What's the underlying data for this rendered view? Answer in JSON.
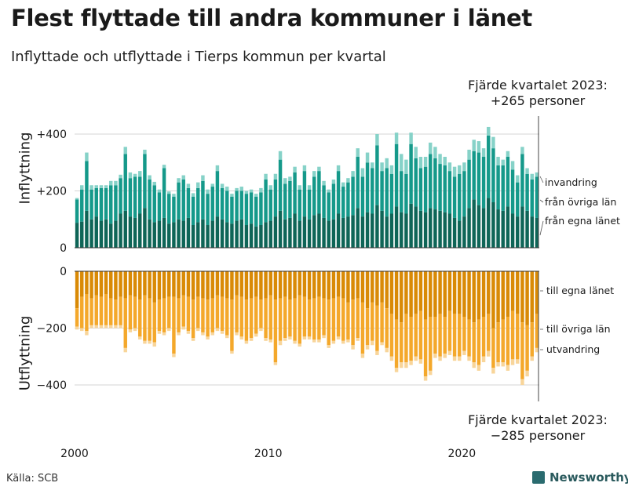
{
  "title": "Flest flyttade till andra kommuner i länet",
  "subtitle": "Inflyttade och utflyttade i Tierps kommun per kvartal",
  "note_top": {
    "line1": "Fjärde kvartalet 2023:",
    "line2": "+265 personer"
  },
  "note_bottom": {
    "line1": "Fjärde kvartalet 2023:",
    "line2": "−285 personer"
  },
  "source": "Källa: SCB",
  "brand": "Newsworthy",
  "colors": {
    "in_egna": "#0e6557",
    "in_ovriga": "#15998a",
    "in_invandring": "#86d2c8",
    "out_egna": "#d98a06",
    "out_ovriga": "#f4a82b",
    "out_utvandring": "#f8d59a"
  },
  "chart_data": [
    {
      "type": "bar",
      "stacked": true,
      "title": "Inflyttning",
      "ylabel": "Inflyttning",
      "ylim": [
        0,
        480
      ],
      "yticks": [
        0,
        200,
        400
      ],
      "ytick_labels": [
        "0",
        "+200",
        "+400"
      ],
      "x_tick_labels": [
        "2000",
        "2010",
        "2020"
      ],
      "x_tick_positions": [
        2000,
        2010,
        2020
      ],
      "x": [
        2000.0,
        2000.25,
        2000.5,
        2000.75,
        2001.0,
        2001.25,
        2001.5,
        2001.75,
        2002.0,
        2002.25,
        2002.5,
        2002.75,
        2003.0,
        2003.25,
        2003.5,
        2003.75,
        2004.0,
        2004.25,
        2004.5,
        2004.75,
        2005.0,
        2005.25,
        2005.5,
        2005.75,
        2006.0,
        2006.25,
        2006.5,
        2006.75,
        2007.0,
        2007.25,
        2007.5,
        2007.75,
        2008.0,
        2008.25,
        2008.5,
        2008.75,
        2009.0,
        2009.25,
        2009.5,
        2009.75,
        2010.0,
        2010.25,
        2010.5,
        2010.75,
        2011.0,
        2011.25,
        2011.5,
        2011.75,
        2012.0,
        2012.25,
        2012.5,
        2012.75,
        2013.0,
        2013.25,
        2013.5,
        2013.75,
        2014.0,
        2014.25,
        2014.5,
        2014.75,
        2015.0,
        2015.25,
        2015.5,
        2015.75,
        2016.0,
        2016.25,
        2016.5,
        2016.75,
        2017.0,
        2017.25,
        2017.5,
        2017.75,
        2018.0,
        2018.25,
        2018.5,
        2018.75,
        2019.0,
        2019.25,
        2019.5,
        2019.75,
        2020.0,
        2020.25,
        2020.5,
        2020.75,
        2021.0,
        2021.25,
        2021.5,
        2021.75,
        2022.0,
        2022.25,
        2022.5,
        2022.75,
        2023.0,
        2023.25,
        2023.5,
        2023.75
      ],
      "series": [
        {
          "name": "från egna länet",
          "values": [
            88,
            92,
            130,
            100,
            110,
            95,
            100,
            85,
            95,
            120,
            130,
            110,
            105,
            120,
            140,
            100,
            90,
            95,
            105,
            85,
            90,
            100,
            95,
            105,
            80,
            90,
            100,
            80,
            95,
            110,
            100,
            90,
            85,
            95,
            100,
            80,
            85,
            75,
            80,
            90,
            95,
            110,
            130,
            100,
            105,
            120,
            95,
            110,
            100,
            115,
            120,
            105,
            95,
            100,
            120,
            105,
            110,
            115,
            140,
            110,
            125,
            120,
            150,
            130,
            110,
            120,
            145,
            125,
            120,
            155,
            145,
            130,
            125,
            140,
            135,
            130,
            125,
            120,
            105,
            95,
            110,
            140,
            170,
            150,
            140,
            175,
            160,
            135,
            130,
            145,
            120,
            110,
            145,
            130,
            110,
            105
          ]
        },
        {
          "name": "från övriga län",
          "values": [
            82,
            113,
            175,
            105,
            100,
            115,
            110,
            135,
            125,
            125,
            200,
            135,
            145,
            130,
            190,
            140,
            130,
            100,
            175,
            105,
            90,
            130,
            145,
            105,
            100,
            120,
            135,
            110,
            120,
            160,
            110,
            110,
            95,
            105,
            100,
            110,
            110,
            105,
            115,
            150,
            110,
            130,
            180,
            125,
            130,
            145,
            110,
            160,
            105,
            135,
            150,
            115,
            100,
            125,
            150,
            110,
            120,
            135,
            180,
            140,
            175,
            160,
            210,
            140,
            170,
            140,
            220,
            145,
            140,
            210,
            170,
            150,
            160,
            190,
            180,
            165,
            165,
            150,
            145,
            165,
            160,
            170,
            170,
            185,
            180,
            220,
            190,
            155,
            160,
            175,
            155,
            120,
            185,
            130,
            130,
            145
          ]
        },
        {
          "name": "invandring",
          "values": [
            5,
            15,
            30,
            15,
            10,
            10,
            10,
            15,
            15,
            12,
            25,
            20,
            10,
            20,
            15,
            15,
            12,
            10,
            12,
            8,
            10,
            15,
            15,
            15,
            12,
            20,
            20,
            15,
            10,
            20,
            15,
            15,
            10,
            10,
            15,
            10,
            10,
            10,
            15,
            20,
            15,
            20,
            30,
            20,
            15,
            20,
            15,
            20,
            15,
            20,
            15,
            15,
            10,
            15,
            20,
            15,
            15,
            20,
            30,
            30,
            35,
            20,
            40,
            30,
            35,
            30,
            40,
            60,
            50,
            40,
            40,
            40,
            35,
            40,
            40,
            35,
            30,
            30,
            35,
            30,
            30,
            35,
            40,
            40,
            30,
            30,
            40,
            30,
            20,
            20,
            30,
            25,
            25,
            20,
            20,
            15
          ]
        }
      ]
    },
    {
      "type": "bar",
      "stacked": true,
      "title": "Utflyttning",
      "ylabel": "Utflyttning",
      "ylim": [
        -460,
        0
      ],
      "yticks": [
        0,
        -200,
        -400
      ],
      "ytick_labels": [
        "0",
        "−200",
        "−400"
      ],
      "x_tick_labels": [
        "2000",
        "2010",
        "2020"
      ],
      "x_tick_positions": [
        2000,
        2010,
        2020
      ],
      "x": [
        2000.0,
        2000.25,
        2000.5,
        2000.75,
        2001.0,
        2001.25,
        2001.5,
        2001.75,
        2002.0,
        2002.25,
        2002.5,
        2002.75,
        2003.0,
        2003.25,
        2003.5,
        2003.75,
        2004.0,
        2004.25,
        2004.5,
        2004.75,
        2005.0,
        2005.25,
        2005.5,
        2005.75,
        2006.0,
        2006.25,
        2006.5,
        2006.75,
        2007.0,
        2007.25,
        2007.5,
        2007.75,
        2008.0,
        2008.25,
        2008.5,
        2008.75,
        2009.0,
        2009.25,
        2009.5,
        2009.75,
        2010.0,
        2010.25,
        2010.5,
        2010.75,
        2011.0,
        2011.25,
        2011.5,
        2011.75,
        2012.0,
        2012.25,
        2012.5,
        2012.75,
        2013.0,
        2013.25,
        2013.5,
        2013.75,
        2014.0,
        2014.25,
        2014.5,
        2014.75,
        2015.0,
        2015.25,
        2015.5,
        2015.75,
        2016.0,
        2016.25,
        2016.5,
        2016.75,
        2017.0,
        2017.25,
        2017.5,
        2017.75,
        2018.0,
        2018.25,
        2018.5,
        2018.75,
        2019.0,
        2019.25,
        2019.5,
        2019.75,
        2020.0,
        2020.25,
        2020.5,
        2020.75,
        2021.0,
        2021.25,
        2021.5,
        2021.75,
        2022.0,
        2022.25,
        2022.5,
        2022.75,
        2023.0,
        2023.25,
        2023.5,
        2023.75
      ],
      "series": [
        {
          "name": "till egna länet",
          "values": [
            -130,
            -90,
            -80,
            -95,
            -85,
            -90,
            -80,
            -95,
            -100,
            -90,
            -95,
            -85,
            -90,
            -100,
            -85,
            -95,
            -110,
            -100,
            -95,
            -90,
            -90,
            -95,
            -85,
            -90,
            -100,
            -90,
            -95,
            -100,
            -95,
            -85,
            -90,
            -95,
            -100,
            -85,
            -90,
            -100,
            -95,
            -90,
            -100,
            -95,
            -85,
            -100,
            -95,
            -90,
            -100,
            -95,
            -85,
            -90,
            -100,
            -95,
            -90,
            -95,
            -100,
            -95,
            -90,
            -95,
            -110,
            -100,
            -95,
            -110,
            -130,
            -110,
            -120,
            -110,
            -130,
            -150,
            -170,
            -180,
            -150,
            -160,
            -150,
            -140,
            -170,
            -160,
            -160,
            -150,
            -160,
            -140,
            -150,
            -150,
            -160,
            -170,
            -180,
            -170,
            -160,
            -150,
            -200,
            -180,
            -170,
            -160,
            -140,
            -150,
            -180,
            -190,
            -180,
            -150
          ]
        },
        {
          "name": "till övriga län",
          "values": [
            -65,
            -110,
            -130,
            -95,
            -105,
            -100,
            -110,
            -95,
            -90,
            -100,
            -175,
            -120,
            -110,
            -130,
            -160,
            -150,
            -140,
            -110,
            -120,
            -110,
            -200,
            -120,
            -110,
            -120,
            -135,
            -110,
            -120,
            -130,
            -120,
            -115,
            -120,
            -130,
            -180,
            -130,
            -140,
            -145,
            -140,
            -130,
            -100,
            -140,
            -155,
            -220,
            -150,
            -145,
            -130,
            -150,
            -170,
            -140,
            -130,
            -145,
            -150,
            -130,
            -160,
            -150,
            -140,
            -150,
            -130,
            -160,
            -140,
            -180,
            -130,
            -135,
            -160,
            -140,
            -140,
            -150,
            -170,
            -140,
            -170,
            -155,
            -150,
            -170,
            -200,
            -190,
            -130,
            -150,
            -130,
            -140,
            -150,
            -150,
            -120,
            -130,
            -140,
            -160,
            -140,
            -130,
            -140,
            -140,
            -150,
            -170,
            -170,
            -160,
            -200,
            -160,
            -120,
            -120
          ]
        },
        {
          "name": "utvandring",
          "values": [
            -10,
            -10,
            -15,
            -10,
            -10,
            -10,
            -10,
            -10,
            -10,
            -10,
            -15,
            -10,
            -10,
            -10,
            -10,
            -10,
            -15,
            -10,
            -10,
            -10,
            -12,
            -10,
            -10,
            -10,
            -10,
            -10,
            -10,
            -10,
            -10,
            -10,
            -10,
            -10,
            -10,
            -10,
            -10,
            -10,
            -10,
            -10,
            -10,
            -10,
            -10,
            -10,
            -15,
            -10,
            -10,
            -10,
            -10,
            -10,
            -10,
            -10,
            -10,
            -10,
            -10,
            -10,
            -10,
            -10,
            -10,
            -15,
            -10,
            -15,
            -15,
            -15,
            -15,
            -10,
            -15,
            -15,
            -15,
            -20,
            -20,
            -15,
            -15,
            -15,
            -15,
            -15,
            -15,
            -15,
            -15,
            -15,
            -15,
            -15,
            -15,
            -15,
            -20,
            -20,
            -20,
            -20,
            -20,
            -15,
            -15,
            -20,
            -20,
            -15,
            -20,
            -20,
            -15,
            -15
          ]
        }
      ]
    }
  ],
  "legend_in": [
    "invandring",
    "från övriga län",
    "från egna länet"
  ],
  "legend_out": [
    "till egna länet",
    "till övriga län",
    "utvandring"
  ]
}
